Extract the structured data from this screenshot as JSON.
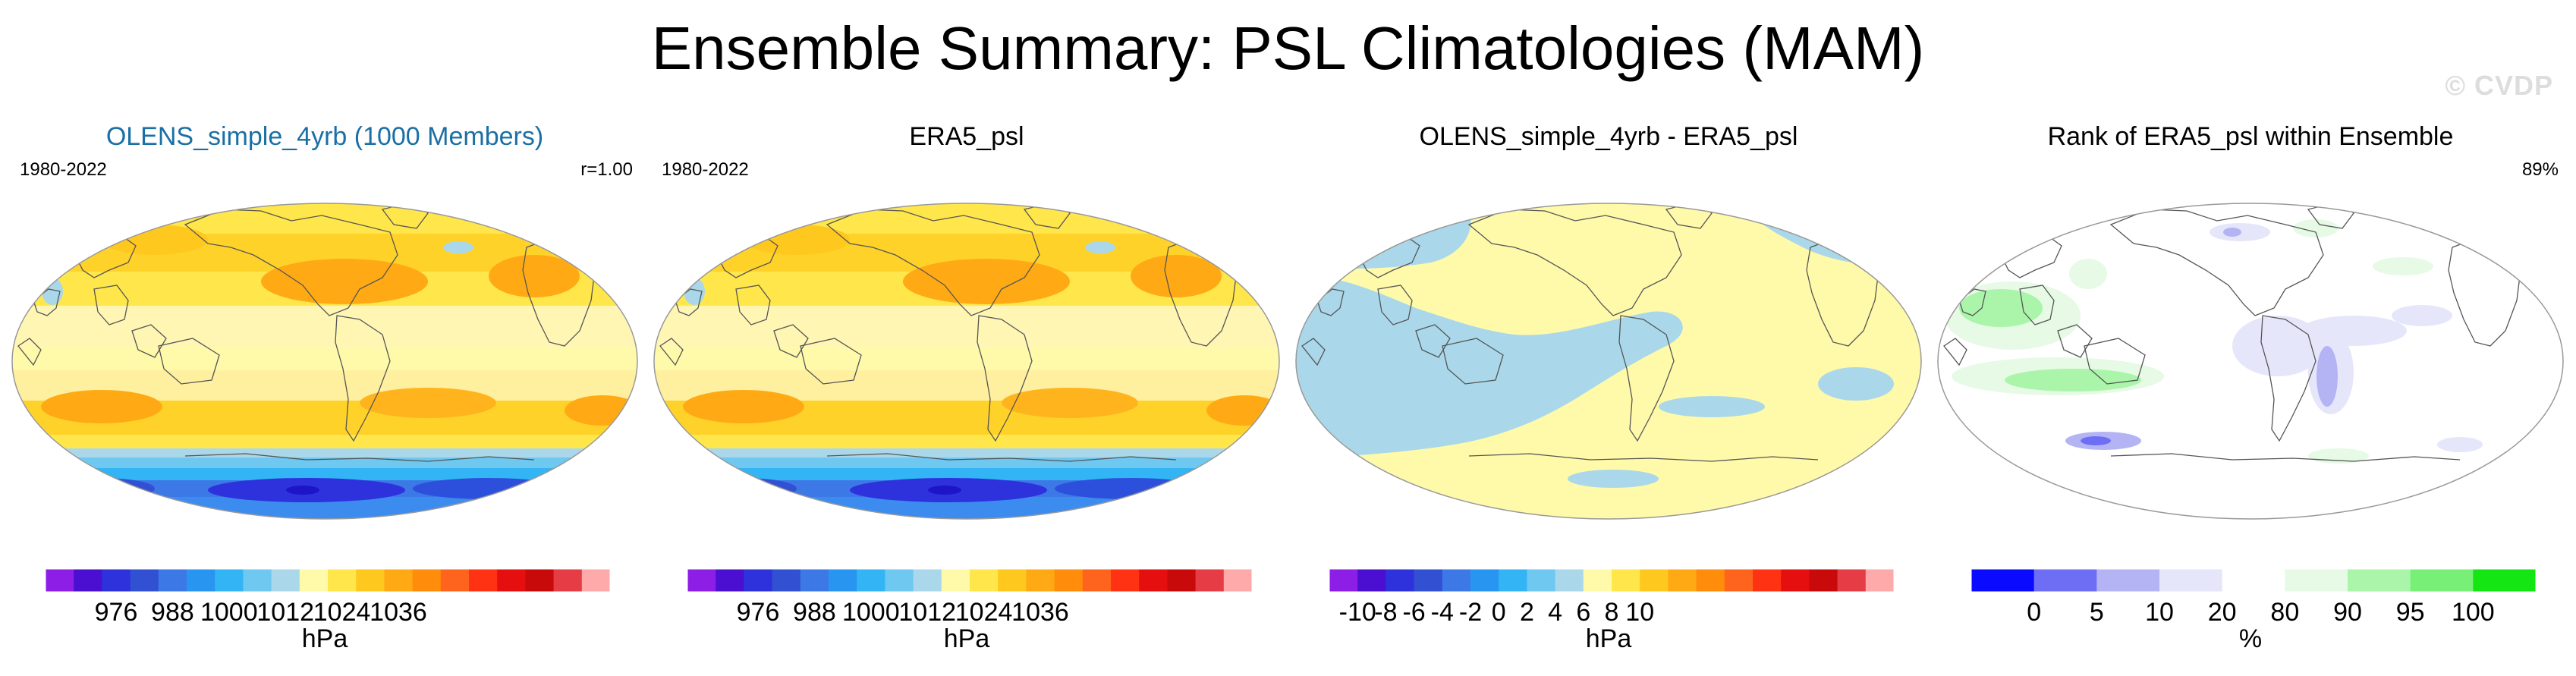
{
  "figure": {
    "title": "Ensemble Summary: PSL Climatologies (MAM)",
    "watermark": "© CVDP"
  },
  "panels": [
    {
      "id": "olens",
      "title": "OLENS_simple_4yrb (1000 Members)",
      "title_color": "#1a6fa5",
      "period": "1980-2022",
      "right_label": "r=1.00",
      "map_style": "psl",
      "colorbar": {
        "colors": [
          "#8c1ee6",
          "#4b0fd2",
          "#2d32dc",
          "#3250d2",
          "#3c78e6",
          "#2896f0",
          "#32b4f5",
          "#6ec8f0",
          "#aad8ea",
          "#fffaaa",
          "#ffe64b",
          "#ffc81e",
          "#ffaa14",
          "#ff8c0a",
          "#ff641e",
          "#ff3214",
          "#e60f0f",
          "#c80a0a",
          "#e63c46",
          "#ffaaaa"
        ],
        "tick_labels": [
          "976",
          "988",
          "1000",
          "1012",
          "1024",
          "1036"
        ],
        "tick_positions": [
          2.5,
          4.5,
          6.5,
          8.5,
          10.5,
          12.5
        ],
        "units": "hPa"
      }
    },
    {
      "id": "era5",
      "title": "ERA5_psl",
      "title_color": "#000000",
      "period": "1980-2022",
      "right_label": "",
      "map_style": "psl",
      "colorbar": {
        "colors": [
          "#8c1ee6",
          "#4b0fd2",
          "#2d32dc",
          "#3250d2",
          "#3c78e6",
          "#2896f0",
          "#32b4f5",
          "#6ec8f0",
          "#aad8ea",
          "#fffaaa",
          "#ffe64b",
          "#ffc81e",
          "#ffaa14",
          "#ff8c0a",
          "#ff641e",
          "#ff3214",
          "#e60f0f",
          "#c80a0a",
          "#e63c46",
          "#ffaaaa"
        ],
        "tick_labels": [
          "976",
          "988",
          "1000",
          "1012",
          "1024",
          "1036"
        ],
        "tick_positions": [
          2.5,
          4.5,
          6.5,
          8.5,
          10.5,
          12.5
        ],
        "units": "hPa"
      }
    },
    {
      "id": "diff",
      "title": "OLENS_simple_4yrb - ERA5_psl",
      "title_color": "#000000",
      "period": "",
      "right_label": "",
      "map_style": "diff",
      "colorbar": {
        "colors": [
          "#8c1ee6",
          "#4b0fd2",
          "#2d32dc",
          "#3250d2",
          "#3c78e6",
          "#2896f0",
          "#32b4f5",
          "#6ec8f0",
          "#aad8ea",
          "#fffaaa",
          "#ffe64b",
          "#ffc81e",
          "#ffaa14",
          "#ff8c0a",
          "#ff641e",
          "#ff3214",
          "#e60f0f",
          "#c80a0a",
          "#e63c46",
          "#ffaaaa"
        ],
        "tick_labels": [
          "-10",
          "-8",
          "-6",
          "-4",
          "-2",
          "0",
          "2",
          "4",
          "6",
          "8",
          "10"
        ],
        "tick_positions": [
          1,
          2,
          3,
          4,
          5,
          6,
          7,
          8,
          9,
          10,
          11
        ],
        "units": "hPa"
      }
    },
    {
      "id": "rank",
      "title": "Rank of ERA5_psl within Ensemble",
      "title_color": "#000000",
      "period": "",
      "right_label": "89%",
      "map_style": "rank",
      "colorbar": {
        "colors": [
          "#0a0aff",
          "#6e6ef5",
          "#b4b4f5",
          "#e6e6fa",
          "#ffffff",
          "#e6fae6",
          "#aaf5aa",
          "#78f078",
          "#14e614"
        ],
        "tick_labels": [
          "0",
          "5",
          "10",
          "20",
          "80",
          "90",
          "95",
          "100"
        ],
        "tick_positions": [
          1,
          2,
          3,
          4,
          5,
          6,
          7,
          8
        ],
        "units": "%"
      }
    }
  ]
}
